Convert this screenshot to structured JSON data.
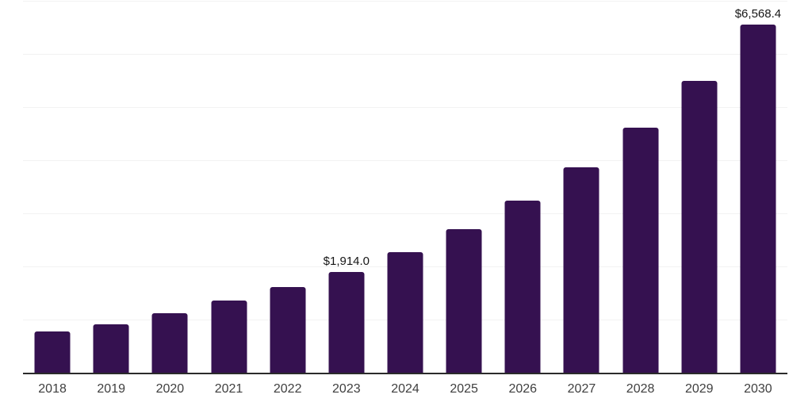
{
  "chart_data": {
    "type": "bar",
    "title": "",
    "xlabel": "",
    "ylabel": "",
    "categories": [
      "2018",
      "2019",
      "2020",
      "2021",
      "2022",
      "2023",
      "2024",
      "2025",
      "2026",
      "2027",
      "2028",
      "2029",
      "2030"
    ],
    "values": [
      795,
      920,
      1135,
      1370,
      1625,
      1914.0,
      2285,
      2720,
      3255,
      3875,
      4620,
      5505,
      6568.4
    ],
    "data_labels": [
      "",
      "",
      "",
      "",
      "",
      "$1,914.0",
      "",
      "",
      "",
      "",
      "",
      "",
      "$6,568.4"
    ],
    "ylim": [
      0,
      7000
    ],
    "gridline_values": [
      1000,
      2000,
      3000,
      4000,
      5000,
      6000,
      7000
    ],
    "grid": "horizontal-only",
    "legend": "none",
    "bar_color": "#351150",
    "gridline_color": "#f2f2f2",
    "axis_line_color": "#2b2b2b",
    "tick_label_color": "#3f3f3f",
    "data_label_color": "#161616"
  }
}
